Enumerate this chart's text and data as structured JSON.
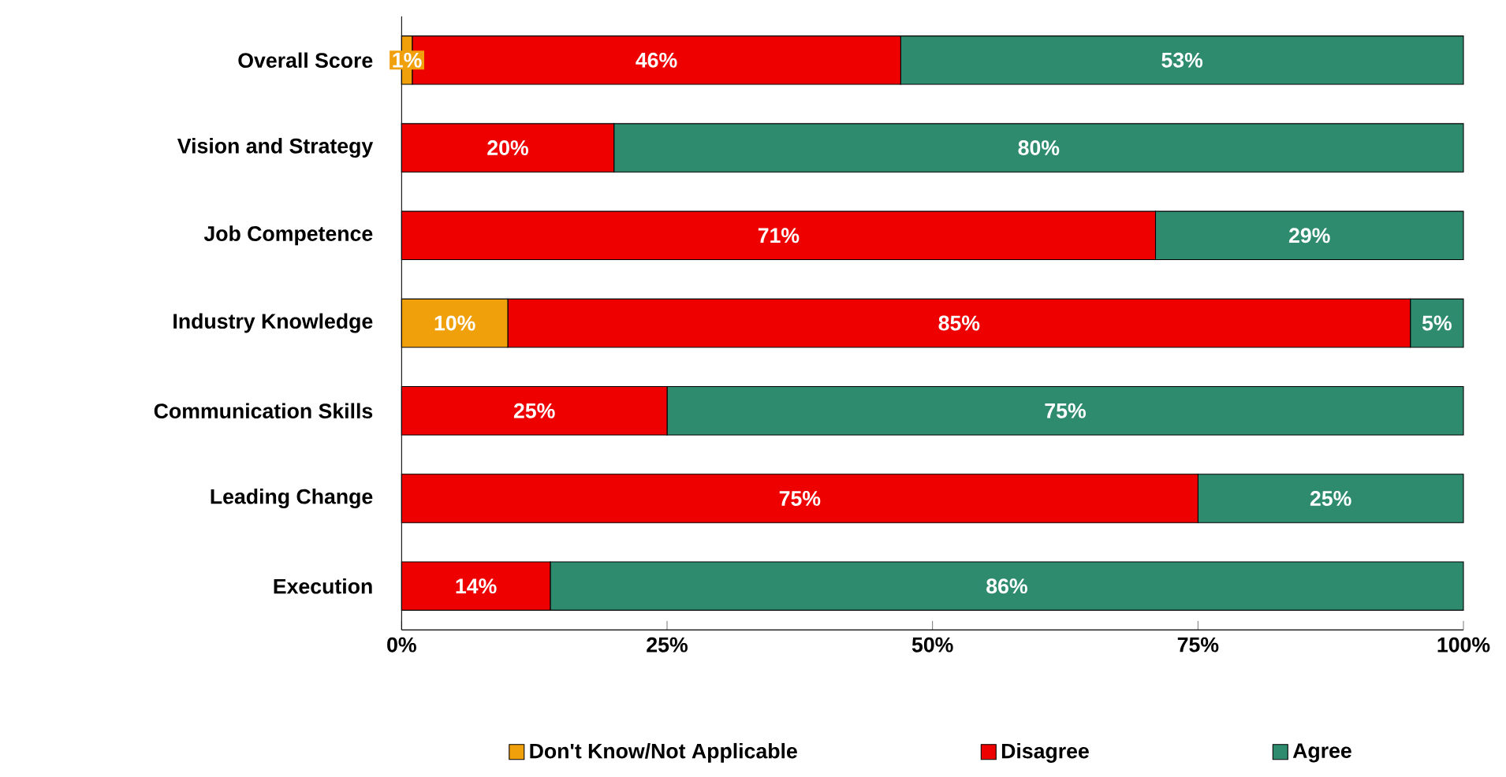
{
  "chart_data": {
    "type": "bar",
    "orientation": "horizontal",
    "stacked": true,
    "categories": [
      "Overall Score",
      "Vision and Strategy",
      "Job Competence",
      "Industry Knowledge",
      "Communication Skills",
      "Leading Change",
      "Execution"
    ],
    "series": [
      {
        "name": "Don't Know/Not Applicable",
        "color": "#f0a00a",
        "values": [
          1,
          0,
          0,
          10,
          0,
          0,
          0
        ],
        "value_labels": [
          "1%",
          null,
          null,
          "10%",
          null,
          null,
          null
        ]
      },
      {
        "name": "Disagree",
        "color": "#ee0000",
        "values": [
          46,
          20,
          71,
          85,
          25,
          75,
          14
        ],
        "value_labels": [
          "46%",
          "20%",
          "71%",
          "85%",
          "25%",
          "75%",
          "14%"
        ]
      },
      {
        "name": "Agree",
        "color": "#2e8b6e",
        "values": [
          53,
          80,
          29,
          5,
          75,
          25,
          86
        ],
        "value_labels": [
          "53%",
          "80%",
          "29%",
          "5%",
          "75%",
          "25%",
          "86%"
        ]
      }
    ],
    "xlim": [
      0,
      100
    ],
    "xticks": [
      {
        "value": 0,
        "label": "0%"
      },
      {
        "value": 25,
        "label": "25%"
      },
      {
        "value": 50,
        "label": "50%"
      },
      {
        "value": 75,
        "label": "75%"
      },
      {
        "value": 100,
        "label": "100%"
      }
    ],
    "legend": "bottom"
  }
}
